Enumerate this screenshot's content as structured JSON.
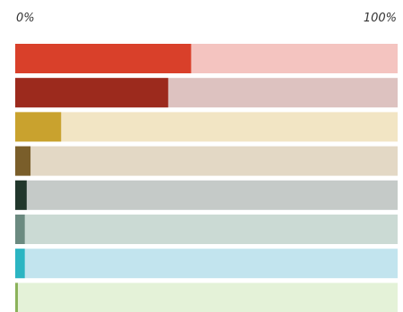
{
  "chart_data": {
    "type": "bar",
    "orientation": "horizontal",
    "stacked_to_100": true,
    "axis": {
      "min_label": "0%",
      "max_label": "100%",
      "range": [
        0,
        100
      ]
    },
    "grid": false,
    "legend": "none",
    "bars": [
      {
        "value": 46,
        "color": "#d9402a",
        "track_color": "#f4c4c0"
      },
      {
        "value": 40,
        "color": "#9c2a1d",
        "track_color": "#ddc2c0"
      },
      {
        "value": 12,
        "color": "#c9a22e",
        "track_color": "#f2e5c4"
      },
      {
        "value": 4,
        "color": "#7a5e2a",
        "track_color": "#e3d8c5"
      },
      {
        "value": 3,
        "color": "#21372c",
        "track_color": "#c5cac8"
      },
      {
        "value": 2.5,
        "color": "#6b8a80",
        "track_color": "#cbdad4"
      },
      {
        "value": 2.5,
        "color": "#2bb5c2",
        "track_color": "#c2e4ee"
      },
      {
        "value": 0.7,
        "color": "#8bb25a",
        "track_color": "#e4f2d8"
      }
    ]
  }
}
